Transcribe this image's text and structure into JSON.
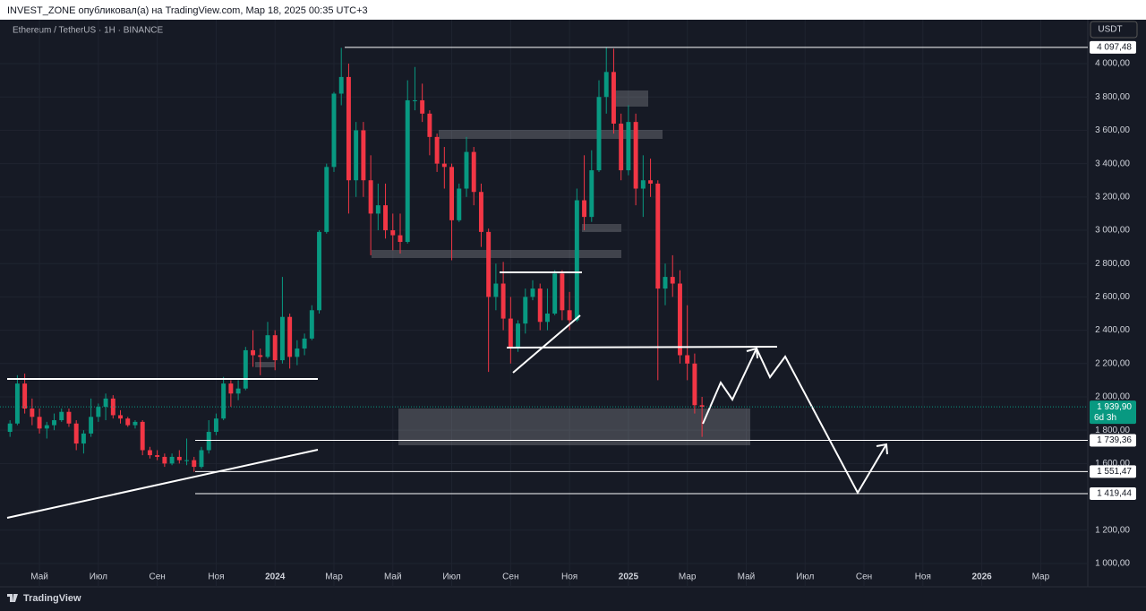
{
  "header": {
    "title": "INVEST_ZONE опубликовал(а) на TradingView.com, Мар 18, 2025 00:35 UTC+3",
    "logo": "TradingView"
  },
  "chart_data": {
    "type": "candlestick",
    "title": "Ethereum / TetherUS · 1H · BINANCE",
    "currency": "USDT",
    "up_color": "#089981",
    "down_color": "#f23645",
    "xlim": [
      2.66,
      39.6
    ],
    "xticks": [
      {
        "value": 4,
        "label": "Май"
      },
      {
        "value": 6,
        "label": "Июл"
      },
      {
        "value": 8,
        "label": "Сен"
      },
      {
        "value": 10,
        "label": "Ноя"
      },
      {
        "value": 12,
        "label": "2024"
      },
      {
        "value": 14,
        "label": "Мар"
      },
      {
        "value": 16,
        "label": "Май"
      },
      {
        "value": 18,
        "label": "Июл"
      },
      {
        "value": 20,
        "label": "Сен"
      },
      {
        "value": 22,
        "label": "Ноя"
      },
      {
        "value": 24,
        "label": "2025"
      },
      {
        "value": 26,
        "label": "Мар"
      },
      {
        "value": 28,
        "label": "Май"
      },
      {
        "value": 30,
        "label": "Июл"
      },
      {
        "value": 32,
        "label": "Сен"
      },
      {
        "value": 34,
        "label": "Ноя"
      },
      {
        "value": 36,
        "label": "2026"
      },
      {
        "value": 38,
        "label": "Мар"
      }
    ],
    "ylim": [
      860,
      4140
    ],
    "yticks": [
      {
        "value": 1000,
        "label": "1 000,00"
      },
      {
        "value": 1200,
        "label": "1 200,00"
      },
      {
        "value": 1600,
        "label": "1 600,00"
      },
      {
        "value": 1800,
        "label": "1 800,00"
      },
      {
        "value": 2000,
        "label": "2 000,00"
      },
      {
        "value": 2200,
        "label": "2 200,00"
      },
      {
        "value": 2400,
        "label": "2 400,00"
      },
      {
        "value": 2600,
        "label": "2 600,00"
      },
      {
        "value": 2800,
        "label": "2 800,00"
      },
      {
        "value": 3000,
        "label": "3 000,00"
      },
      {
        "value": 3200,
        "label": "3 200,00"
      },
      {
        "value": 3400,
        "label": "3 400,00"
      },
      {
        "value": 3600,
        "label": "3 600,00"
      },
      {
        "value": 3800,
        "label": "3 800,00"
      },
      {
        "value": 4000,
        "label": "4 000,00"
      }
    ],
    "levels": [
      {
        "value": 4097.48,
        "label": "4 097,48"
      },
      {
        "value": 1739.36,
        "label": "1 739,36"
      },
      {
        "value": 1551.47,
        "label": "1 551,47"
      },
      {
        "value": 1419.44,
        "label": "1 419,44"
      }
    ],
    "last_price": {
      "value": 1939.9,
      "label": "1 939,90",
      "countdown": "6d 3h"
    },
    "x": [
      3,
      3.25,
      3.5,
      3.75,
      4,
      4.25,
      4.5,
      4.75,
      5,
      5.25,
      5.5,
      5.75,
      6,
      6.25,
      6.5,
      6.75,
      7,
      7.25,
      7.5,
      7.75,
      8,
      8.25,
      8.5,
      8.75,
      9,
      9.25,
      9.5,
      9.75,
      10,
      10.25,
      10.5,
      10.75,
      11,
      11.25,
      11.5,
      11.75,
      12,
      12.25,
      12.5,
      12.75,
      13,
      13.25,
      13.5,
      13.75,
      14,
      14.25,
      14.5,
      14.75,
      15,
      15.25,
      15.5,
      15.75,
      16,
      16.25,
      16.5,
      16.75,
      17,
      17.25,
      17.5,
      17.75,
      18,
      18.25,
      18.5,
      18.75,
      19,
      19.25,
      19.5,
      19.75,
      20,
      20.25,
      20.5,
      20.75,
      21,
      21.25,
      21.5,
      21.75,
      22,
      22.25,
      22.5,
      22.75,
      23,
      23.25,
      23.5,
      23.75,
      24,
      24.25,
      24.5,
      24.75,
      25,
      25.25,
      25.5,
      25.75,
      26,
      26.25,
      26.5
    ],
    "open": [
      1790,
      1840,
      2080,
      1930,
      1880,
      1810,
      1830,
      1860,
      1910,
      1840,
      1720,
      1780,
      1880,
      1940,
      1990,
      1890,
      1870,
      1830,
      1850,
      1680,
      1650,
      1640,
      1600,
      1640,
      1620,
      1620,
      1580,
      1680,
      1790,
      1870,
      2080,
      2020,
      2050,
      2280,
      2250,
      2240,
      2370,
      2220,
      2480,
      2240,
      2290,
      2350,
      2520,
      2990,
      3380,
      3820,
      3920,
      3300,
      3600,
      3300,
      3100,
      3150,
      3000,
      2970,
      2930,
      3780,
      3780,
      3700,
      3560,
      3400,
      3380,
      3060,
      3250,
      3470,
      3230,
      2990,
      2600,
      2680,
      2470,
      2300,
      2440,
      2600,
      2650,
      2450,
      2500,
      2740,
      2520,
      2460,
      3180,
      3080,
      3360,
      3800,
      3950,
      3640,
      3360,
      3650,
      3250,
      3300,
      3280,
      2650,
      2720,
      2680,
      2250,
      2200,
      1950
    ],
    "high": [
      1860,
      2130,
      2140,
      1990,
      1930,
      1850,
      1900,
      1930,
      1930,
      1860,
      1800,
      1990,
      1960,
      2020,
      2010,
      1920,
      1880,
      1860,
      1860,
      1700,
      1680,
      1660,
      1660,
      1680,
      1750,
      1640,
      1700,
      1860,
      1900,
      2120,
      2100,
      2100,
      2300,
      2400,
      2290,
      2450,
      2400,
      2720,
      2500,
      2340,
      2380,
      2550,
      3000,
      3400,
      3830,
      4095,
      4000,
      3650,
      3650,
      3450,
      3280,
      3280,
      3100,
      3100,
      3900,
      3980,
      3880,
      3720,
      3580,
      3500,
      3400,
      3280,
      3560,
      3500,
      3280,
      3010,
      2800,
      2810,
      2600,
      2460,
      2650,
      2700,
      2680,
      2650,
      2760,
      2760,
      2630,
      3250,
      3450,
      3480,
      3900,
      4100,
      4090,
      3700,
      3750,
      3700,
      3450,
      3430,
      3300,
      2800,
      2850,
      2760,
      2550,
      2260,
      2000
    ],
    "low": [
      1760,
      1830,
      1900,
      1830,
      1780,
      1750,
      1800,
      1850,
      1820,
      1680,
      1660,
      1760,
      1850,
      1860,
      1870,
      1840,
      1820,
      1810,
      1650,
      1630,
      1620,
      1580,
      1590,
      1600,
      1590,
      1550,
      1570,
      1660,
      1770,
      1860,
      1940,
      1980,
      2040,
      2180,
      2130,
      2230,
      2160,
      2200,
      2170,
      2190,
      2250,
      2340,
      2500,
      2980,
      3350,
      3750,
      3100,
      3200,
      3200,
      2850,
      3000,
      2950,
      2880,
      2860,
      2920,
      3720,
      3650,
      3450,
      3350,
      3250,
      2820,
      3050,
      3200,
      3150,
      2900,
      2150,
      2520,
      2400,
      2200,
      2270,
      2380,
      2580,
      2400,
      2400,
      2490,
      2460,
      2400,
      2450,
      3000,
      3050,
      3350,
      3700,
      3580,
      3300,
      3330,
      3150,
      3080,
      3200,
      2100,
      2550,
      2600,
      2200,
      2100,
      1900,
      1760
    ],
    "close": [
      1840,
      2080,
      1930,
      1880,
      1810,
      1830,
      1860,
      1910,
      1840,
      1720,
      1780,
      1880,
      1940,
      1990,
      1890,
      1870,
      1830,
      1850,
      1680,
      1650,
      1640,
      1600,
      1640,
      1620,
      1620,
      1580,
      1680,
      1790,
      1870,
      2080,
      2020,
      2050,
      2280,
      2250,
      2240,
      2370,
      2220,
      2480,
      2240,
      2290,
      2350,
      2520,
      2990,
      3380,
      3820,
      3920,
      3300,
      3600,
      3300,
      3100,
      3150,
      3000,
      2970,
      2930,
      3780,
      3780,
      3700,
      3560,
      3400,
      3380,
      3060,
      3250,
      3470,
      3230,
      2990,
      2600,
      2680,
      2470,
      2300,
      2440,
      2600,
      2650,
      2450,
      2500,
      2740,
      2520,
      2460,
      3180,
      3080,
      3360,
      3800,
      3950,
      3640,
      3360,
      3650,
      3250,
      3300,
      3280,
      2650,
      2720,
      2680,
      2250,
      2200,
      1950,
      1940
    ]
  }
}
